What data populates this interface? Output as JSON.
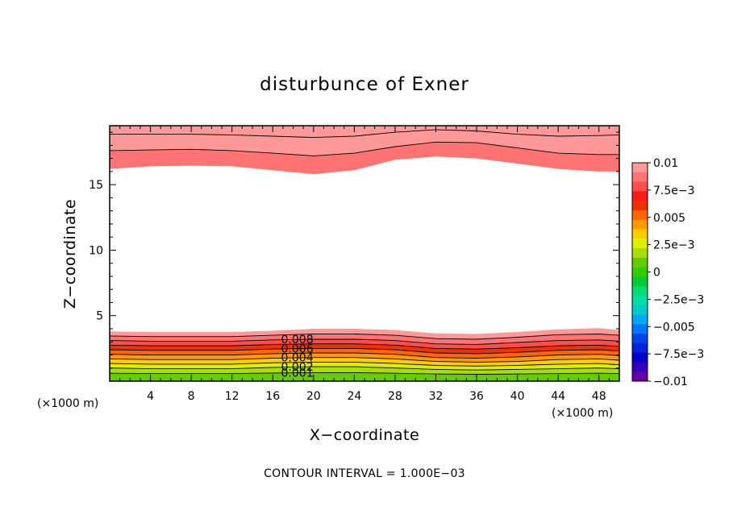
{
  "chart_data": {
    "type": "contour",
    "title": "disturbunce of Exner",
    "xlabel": "X−coordinate",
    "ylabel": "Z−coordinate",
    "x_unit_left": "(×1000 m)",
    "x_unit_right": "(×1000 m)",
    "xlim": [
      0,
      50
    ],
    "ylim": [
      0,
      19.5
    ],
    "x_ticks": [
      4,
      8,
      12,
      16,
      20,
      24,
      28,
      32,
      36,
      40,
      44,
      48
    ],
    "x_tick_labels": [
      "4",
      "8",
      "12",
      "16",
      "20",
      "24",
      "28",
      "32",
      "36",
      "40",
      "44",
      "48"
    ],
    "y_ticks": [
      5,
      10,
      15
    ],
    "y_tick_labels": [
      "5",
      "10",
      "15"
    ],
    "footer": "CONTOUR INTERVAL = 1.000E−03",
    "contour_interval": 0.001,
    "contour_labels": [
      "0.008",
      "0.006",
      "0.004",
      "0.002",
      "0.001"
    ],
    "colorbar": {
      "range": [
        -0.01,
        0.01
      ],
      "tick_values": [
        0.01,
        0.0075,
        0.005,
        0.0025,
        0,
        -0.0025,
        -0.005,
        -0.0075,
        -0.01
      ],
      "tick_labels": [
        "0.01",
        "7.5e−3",
        "0.005",
        "2.5e−3",
        "0",
        "−2.5e−3",
        "−0.005",
        "−7.5e−3",
        "−0.01"
      ],
      "colors": [
        "#ff9999",
        "#ff7373",
        "#ff4d4d",
        "#ff1a1a",
        "#ee3300",
        "#ff6600",
        "#ff9900",
        "#ffcc00",
        "#ddee00",
        "#aadd00",
        "#66cc00",
        "#33cc00",
        "#00cc33",
        "#00dd77",
        "#00ddaa",
        "#00cccc",
        "#00aaee",
        "#0077ff",
        "#0044ee",
        "#0022dd",
        "#0000cc",
        "#3300bb",
        "#6600aa"
      ]
    },
    "upper_band": {
      "x": [
        0,
        4,
        8,
        12,
        16,
        20,
        24,
        28,
        32,
        36,
        40,
        44,
        48,
        50
      ],
      "lowest_filled_level": 0.007,
      "top_contour_z": [
        18.85,
        18.85,
        18.85,
        18.8,
        18.7,
        18.6,
        18.7,
        19.0,
        19.2,
        19.1,
        18.85,
        18.7,
        18.75,
        18.8
      ],
      "mid_contour_z": [
        17.6,
        17.65,
        17.7,
        17.6,
        17.4,
        17.2,
        17.4,
        17.9,
        18.25,
        18.2,
        17.8,
        17.4,
        17.3,
        17.3
      ],
      "edge_z": [
        16.2,
        16.4,
        16.45,
        16.4,
        16.1,
        15.8,
        16.1,
        16.9,
        17.15,
        17.0,
        16.6,
        16.2,
        16.0,
        16.0
      ]
    },
    "lower_band": {
      "x": [
        0,
        4,
        8,
        12,
        16,
        20,
        24,
        28,
        32,
        36,
        40,
        44,
        48,
        50
      ],
      "levels": [
        0.01,
        0.009,
        0.008,
        0.007,
        0.006,
        0.005,
        0.004,
        0.003,
        0.002,
        0.001
      ],
      "level_z": [
        [
          3.8,
          3.75,
          3.75,
          3.75,
          3.85,
          4.0,
          4.0,
          3.9,
          3.65,
          3.6,
          3.75,
          3.95,
          4.05,
          3.9
        ],
        [
          3.45,
          3.4,
          3.4,
          3.4,
          3.5,
          3.6,
          3.6,
          3.5,
          3.25,
          3.2,
          3.35,
          3.55,
          3.6,
          3.5
        ],
        [
          3.1,
          3.05,
          3.05,
          3.05,
          3.15,
          3.2,
          3.2,
          3.1,
          2.85,
          2.8,
          2.95,
          3.1,
          3.15,
          3.05
        ],
        [
          2.75,
          2.7,
          2.7,
          2.7,
          2.8,
          2.85,
          2.85,
          2.75,
          2.5,
          2.45,
          2.55,
          2.7,
          2.75,
          2.65
        ],
        [
          2.4,
          2.35,
          2.35,
          2.35,
          2.45,
          2.5,
          2.5,
          2.4,
          2.15,
          2.1,
          2.2,
          2.35,
          2.4,
          2.3
        ],
        [
          2.05,
          2.0,
          2.0,
          2.0,
          2.1,
          2.15,
          2.15,
          2.05,
          1.8,
          1.75,
          1.85,
          2.0,
          2.05,
          1.95
        ],
        [
          1.7,
          1.65,
          1.65,
          1.65,
          1.75,
          1.8,
          1.8,
          1.7,
          1.5,
          1.45,
          1.5,
          1.65,
          1.7,
          1.6
        ],
        [
          1.35,
          1.3,
          1.3,
          1.3,
          1.4,
          1.45,
          1.45,
          1.35,
          1.2,
          1.15,
          1.2,
          1.3,
          1.35,
          1.25
        ],
        [
          1.0,
          0.95,
          0.95,
          0.95,
          1.05,
          1.1,
          1.1,
          1.0,
          0.9,
          0.85,
          0.9,
          0.95,
          1.0,
          0.95
        ],
        [
          0.6,
          0.58,
          0.58,
          0.58,
          0.62,
          0.65,
          0.65,
          0.6,
          0.55,
          0.52,
          0.55,
          0.58,
          0.6,
          0.58
        ]
      ]
    }
  }
}
